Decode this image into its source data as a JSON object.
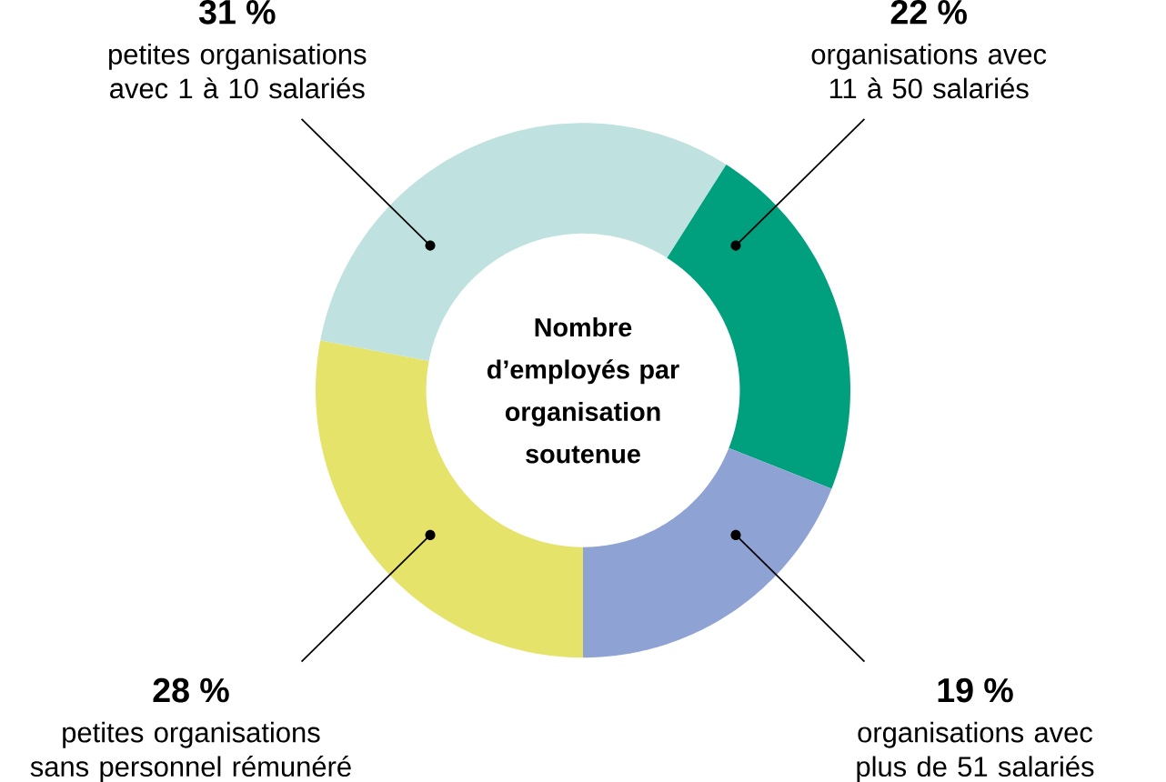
{
  "chart_data": {
    "type": "donut",
    "title": "Nombre d’employés par organisation soutenue",
    "categories": [
      "petites organisations sans personnel rémunéré",
      "petites organisations avec 1 à 10 salariés",
      "organisations avec 11 à 50 salariés",
      "organisations avec plus de 51 salariés"
    ],
    "values": [
      28,
      31,
      22,
      19
    ],
    "colors": [
      "#e6e36a",
      "#bfe2e0",
      "#00a07e",
      "#8ea3d4"
    ],
    "value_labels": [
      "28 %",
      "31 %",
      "22 %",
      "19 %"
    ]
  }
}
